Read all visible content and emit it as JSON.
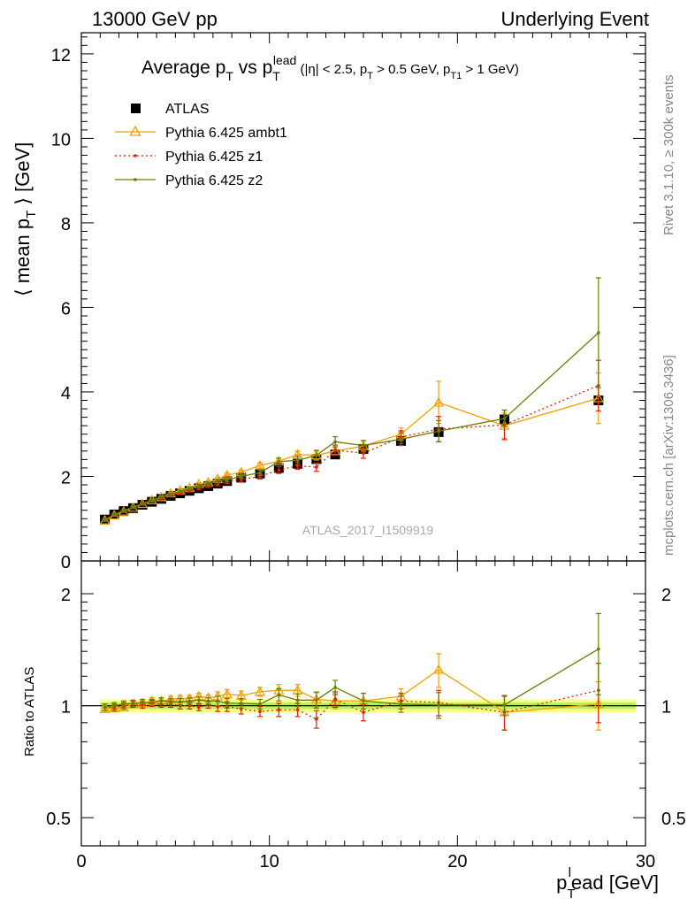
{
  "header": {
    "left": "13000 GeV pp",
    "right": "Underlying Event"
  },
  "side_labels": {
    "rivet": "Rivet 3.1.10, ≥ 300k events",
    "mcplots": "mcplots.cern.ch [arXiv:1306.3436]"
  },
  "chart_data": [
    {
      "type": "scatter",
      "panel": "main",
      "title": {
        "prefix": "Average p",
        "sub1": "T",
        "mid": " vs p",
        "sub2": "T",
        "sup2": "lead",
        "cuts_open": " (|η| < 2.5, p",
        "cuts_sub1": "T",
        "cuts_mid": " > 0.5 GeV, p",
        "cuts_sub2": "T1",
        "cuts_close": " > 1 GeV)"
      },
      "ylabel": {
        "open": "⟨ mean p",
        "sub": "T",
        "close": " ⟩ [GeV]"
      },
      "xlim": [
        0,
        30
      ],
      "ylim": [
        0,
        12.5
      ],
      "yticks": [
        0,
        2,
        4,
        6,
        8,
        10,
        12
      ],
      "yticklabels": [
        "0",
        "2",
        "4",
        "6",
        "8",
        "10",
        "12"
      ],
      "watermark": "ATLAS_2017_I1509919",
      "legend": [
        "ATLAS",
        "Pythia 6.425 ambt1",
        "Pythia 6.425 z1",
        "Pythia 6.425 z2"
      ],
      "x": [
        1.25,
        1.75,
        2.25,
        2.75,
        3.25,
        3.75,
        4.25,
        4.75,
        5.25,
        5.75,
        6.25,
        6.75,
        7.25,
        7.75,
        8.5,
        9.5,
        10.5,
        11.5,
        12.5,
        13.5,
        15.0,
        17.0,
        19.0,
        22.5,
        27.5
      ],
      "series": [
        {
          "name": "ATLAS",
          "color": "#000000",
          "marker": "square",
          "values": [
            0.98,
            1.1,
            1.18,
            1.25,
            1.33,
            1.4,
            1.47,
            1.54,
            1.6,
            1.66,
            1.72,
            1.77,
            1.83,
            1.89,
            1.97,
            2.07,
            2.2,
            2.3,
            2.41,
            2.52,
            2.65,
            2.84,
            3.05,
            3.35,
            3.8
          ]
        },
        {
          "name": "Pythia 6.425 ambt1",
          "color": "#f0a000",
          "marker": "triangle",
          "dash": "",
          "values": [
            0.96,
            1.08,
            1.17,
            1.26,
            1.35,
            1.44,
            1.51,
            1.6,
            1.67,
            1.73,
            1.82,
            1.86,
            1.94,
            2.03,
            2.1,
            2.26,
            2.36,
            2.52,
            2.5,
            2.6,
            2.72,
            3.0,
            3.75,
            3.2,
            3.85
          ],
          "errors": [
            0.02,
            0.02,
            0.02,
            0.02,
            0.02,
            0.02,
            0.02,
            0.03,
            0.03,
            0.03,
            0.03,
            0.04,
            0.04,
            0.05,
            0.05,
            0.06,
            0.08,
            0.08,
            0.1,
            0.1,
            0.12,
            0.15,
            0.5,
            0.3,
            0.6
          ]
        },
        {
          "name": "Pythia 6.425 z1",
          "color": "#e02000",
          "marker": "dot",
          "dash": "2,3",
          "values": [
            0.97,
            1.09,
            1.18,
            1.26,
            1.34,
            1.42,
            1.48,
            1.56,
            1.6,
            1.66,
            1.71,
            1.78,
            1.82,
            1.88,
            1.93,
            2.0,
            2.15,
            2.25,
            2.22,
            2.62,
            2.55,
            2.93,
            3.12,
            3.22,
            4.15
          ],
          "errors": [
            0.02,
            0.02,
            0.02,
            0.02,
            0.02,
            0.02,
            0.02,
            0.03,
            0.03,
            0.03,
            0.03,
            0.04,
            0.04,
            0.05,
            0.05,
            0.06,
            0.08,
            0.08,
            0.1,
            0.12,
            0.12,
            0.15,
            0.3,
            0.35,
            0.6
          ]
        },
        {
          "name": "Pythia 6.425 z2",
          "color": "#6b7d00",
          "marker": "dot",
          "dash": "",
          "values": [
            0.97,
            1.1,
            1.19,
            1.27,
            1.36,
            1.43,
            1.51,
            1.58,
            1.64,
            1.71,
            1.78,
            1.82,
            1.89,
            1.92,
            2.0,
            2.09,
            2.35,
            2.38,
            2.5,
            2.82,
            2.73,
            2.88,
            3.07,
            3.37,
            5.4
          ],
          "errors": [
            0.02,
            0.02,
            0.02,
            0.02,
            0.02,
            0.02,
            0.02,
            0.03,
            0.03,
            0.03,
            0.03,
            0.04,
            0.04,
            0.05,
            0.05,
            0.06,
            0.08,
            0.1,
            0.12,
            0.12,
            0.12,
            0.15,
            0.25,
            0.2,
            1.3
          ]
        }
      ]
    },
    {
      "type": "line",
      "panel": "ratio",
      "ylabel": "Ratio to ATLAS",
      "xlabel": {
        "open": "p",
        "sub": "T",
        "sup": "l",
        "close": "ead [GeV]"
      },
      "xlim": [
        0,
        30
      ],
      "ylim": [
        0.42,
        2.45
      ],
      "yscale": "log",
      "xticks": [
        0,
        10,
        20,
        30
      ],
      "xticklabels": [
        "0",
        "10",
        "20",
        "30"
      ],
      "yticks": [
        0.5,
        1,
        2
      ],
      "yticklabels": [
        "0.5",
        "1",
        "2"
      ],
      "reference_band": {
        "inner": 0.02,
        "outer": 0.04,
        "colors": [
          "#ffff88",
          "#bbee66"
        ]
      },
      "x": [
        1.25,
        1.75,
        2.25,
        2.75,
        3.25,
        3.75,
        4.25,
        4.75,
        5.25,
        5.75,
        6.25,
        6.75,
        7.25,
        7.75,
        8.5,
        9.5,
        10.5,
        11.5,
        12.5,
        13.5,
        15.0,
        17.0,
        19.0,
        22.5,
        27.5
      ],
      "series": [
        {
          "name": "Pythia 6.425 ambt1",
          "color": "#f0a000",
          "marker": "triangle",
          "dash": "",
          "values": [
            0.98,
            0.985,
            0.99,
            1.01,
            1.015,
            1.03,
            1.03,
            1.04,
            1.045,
            1.045,
            1.06,
            1.05,
            1.06,
            1.075,
            1.065,
            1.09,
            1.1,
            1.1,
            1.04,
            1.03,
            1.03,
            1.06,
            1.25,
            0.96,
            1.01
          ],
          "errors": [
            0.02,
            0.02,
            0.02,
            0.02,
            0.02,
            0.02,
            0.02,
            0.02,
            0.02,
            0.02,
            0.02,
            0.02,
            0.03,
            0.03,
            0.03,
            0.03,
            0.04,
            0.04,
            0.05,
            0.05,
            0.05,
            0.05,
            0.13,
            0.1,
            0.15
          ]
        },
        {
          "name": "Pythia 6.425 z1",
          "color": "#e02000",
          "marker": "dot",
          "dash": "2,3",
          "values": [
            0.99,
            0.99,
            1.0,
            1.01,
            1.005,
            1.015,
            1.01,
            1.01,
            1.0,
            1.0,
            0.99,
            1.005,
            0.995,
            0.995,
            0.98,
            0.965,
            0.975,
            0.975,
            0.92,
            1.04,
            0.96,
            1.03,
            1.02,
            0.96,
            1.1
          ],
          "errors": [
            0.02,
            0.02,
            0.02,
            0.02,
            0.02,
            0.02,
            0.02,
            0.02,
            0.02,
            0.02,
            0.02,
            0.02,
            0.03,
            0.03,
            0.03,
            0.03,
            0.04,
            0.04,
            0.05,
            0.05,
            0.05,
            0.05,
            0.08,
            0.1,
            0.2
          ]
        },
        {
          "name": "Pythia 6.425 z2",
          "color": "#6b7d00",
          "marker": "dot",
          "dash": "",
          "values": [
            0.99,
            1.0,
            1.01,
            1.015,
            1.02,
            1.02,
            1.03,
            1.025,
            1.025,
            1.03,
            1.035,
            1.03,
            1.03,
            1.015,
            1.015,
            1.01,
            1.07,
            1.035,
            1.035,
            1.12,
            1.03,
            1.01,
            1.005,
            1.005,
            1.42
          ],
          "errors": [
            0.02,
            0.02,
            0.02,
            0.02,
            0.02,
            0.02,
            0.02,
            0.02,
            0.02,
            0.02,
            0.02,
            0.02,
            0.03,
            0.03,
            0.03,
            0.03,
            0.04,
            0.04,
            0.05,
            0.05,
            0.05,
            0.05,
            0.08,
            0.06,
            0.35
          ]
        }
      ]
    }
  ]
}
